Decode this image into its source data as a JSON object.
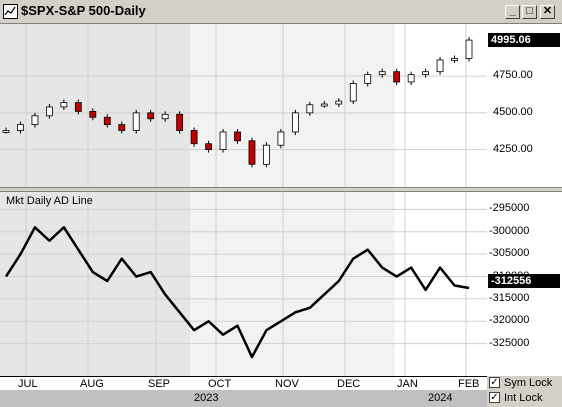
{
  "window": {
    "title": "$SPX-S&P 500-Daily",
    "icon": "chart-window-icon",
    "buttons": [
      "minimize-icon",
      "maximize-icon",
      "close-icon"
    ]
  },
  "price_pane": {
    "y_ticks": [
      "4250.00",
      "4500.00",
      "4750.00"
    ],
    "last_price": "4995.06"
  },
  "ad_pane": {
    "title": "Mkt Daily AD Line",
    "y_ticks": [
      "-295000",
      "-300000",
      "-305000",
      "-310000",
      "-315000",
      "-320000",
      "-325000"
    ],
    "last_value": "-312556"
  },
  "x_axis": {
    "months": [
      "JUL",
      "AUG",
      "SEP",
      "OCT",
      "NOV",
      "DEC",
      "JAN",
      "FEB"
    ],
    "years": [
      "2023",
      "2024"
    ]
  },
  "options": {
    "sym_lock": "Sym Lock",
    "int_lock": "Int Lock",
    "sym_lock_checked": true,
    "int_lock_checked": true
  },
  "chart_data": [
    {
      "type": "candlestick",
      "title": "$SPX-S&P 500-Daily",
      "ylim": [
        4050,
        5050
      ],
      "x": [
        "Jun 28",
        "Jul 5",
        "Jul 12",
        "Jul 19",
        "Jul 26",
        "Aug 2",
        "Aug 9",
        "Aug 16",
        "Aug 23",
        "Aug 30",
        "Sep 6",
        "Sep 13",
        "Sep 20",
        "Sep 27",
        "Oct 4",
        "Oct 11",
        "Oct 18",
        "Oct 25",
        "Nov 1",
        "Nov 8",
        "Nov 15",
        "Nov 22",
        "Nov 29",
        "Dec 6",
        "Dec 13",
        "Dec 20",
        "Dec 27",
        "Jan 3",
        "Jan 10",
        "Jan 17",
        "Jan 24",
        "Jan 31",
        "Feb 7"
      ],
      "values": [
        4380,
        4420,
        4480,
        4540,
        4570,
        4510,
        4470,
        4420,
        4380,
        4500,
        4460,
        4490,
        4380,
        4290,
        4250,
        4370,
        4310,
        4150,
        4280,
        4370,
        4500,
        4555,
        4560,
        4580,
        4700,
        4760,
        4780,
        4710,
        4760,
        4780,
        4860,
        4870,
        4995
      ]
    },
    {
      "type": "line",
      "title": "Mkt Daily AD Line",
      "ylim": [
        -330000,
        -292000
      ],
      "x": [
        "Jun 28",
        "Jul 5",
        "Jul 12",
        "Jul 19",
        "Jul 26",
        "Aug 2",
        "Aug 9",
        "Aug 16",
        "Aug 23",
        "Aug 30",
        "Sep 6",
        "Sep 13",
        "Sep 20",
        "Sep 27",
        "Oct 4",
        "Oct 11",
        "Oct 18",
        "Oct 25",
        "Nov 1",
        "Nov 8",
        "Nov 15",
        "Nov 22",
        "Nov 29",
        "Dec 6",
        "Dec 13",
        "Dec 20",
        "Dec 27",
        "Jan 3",
        "Jan 10",
        "Jan 17",
        "Jan 24",
        "Jan 31",
        "Feb 7"
      ],
      "values": [
        -310000,
        -305000,
        -299000,
        -302000,
        -299000,
        -304000,
        -309000,
        -311000,
        -306000,
        -310000,
        -309000,
        -314000,
        -318000,
        -322000,
        -320000,
        -323000,
        -321000,
        -328000,
        -322000,
        -320000,
        -318000,
        -317000,
        -314000,
        -311000,
        -306000,
        -304000,
        -308000,
        -310000,
        -308000,
        -313000,
        -308000,
        -312000,
        -312556
      ]
    }
  ]
}
